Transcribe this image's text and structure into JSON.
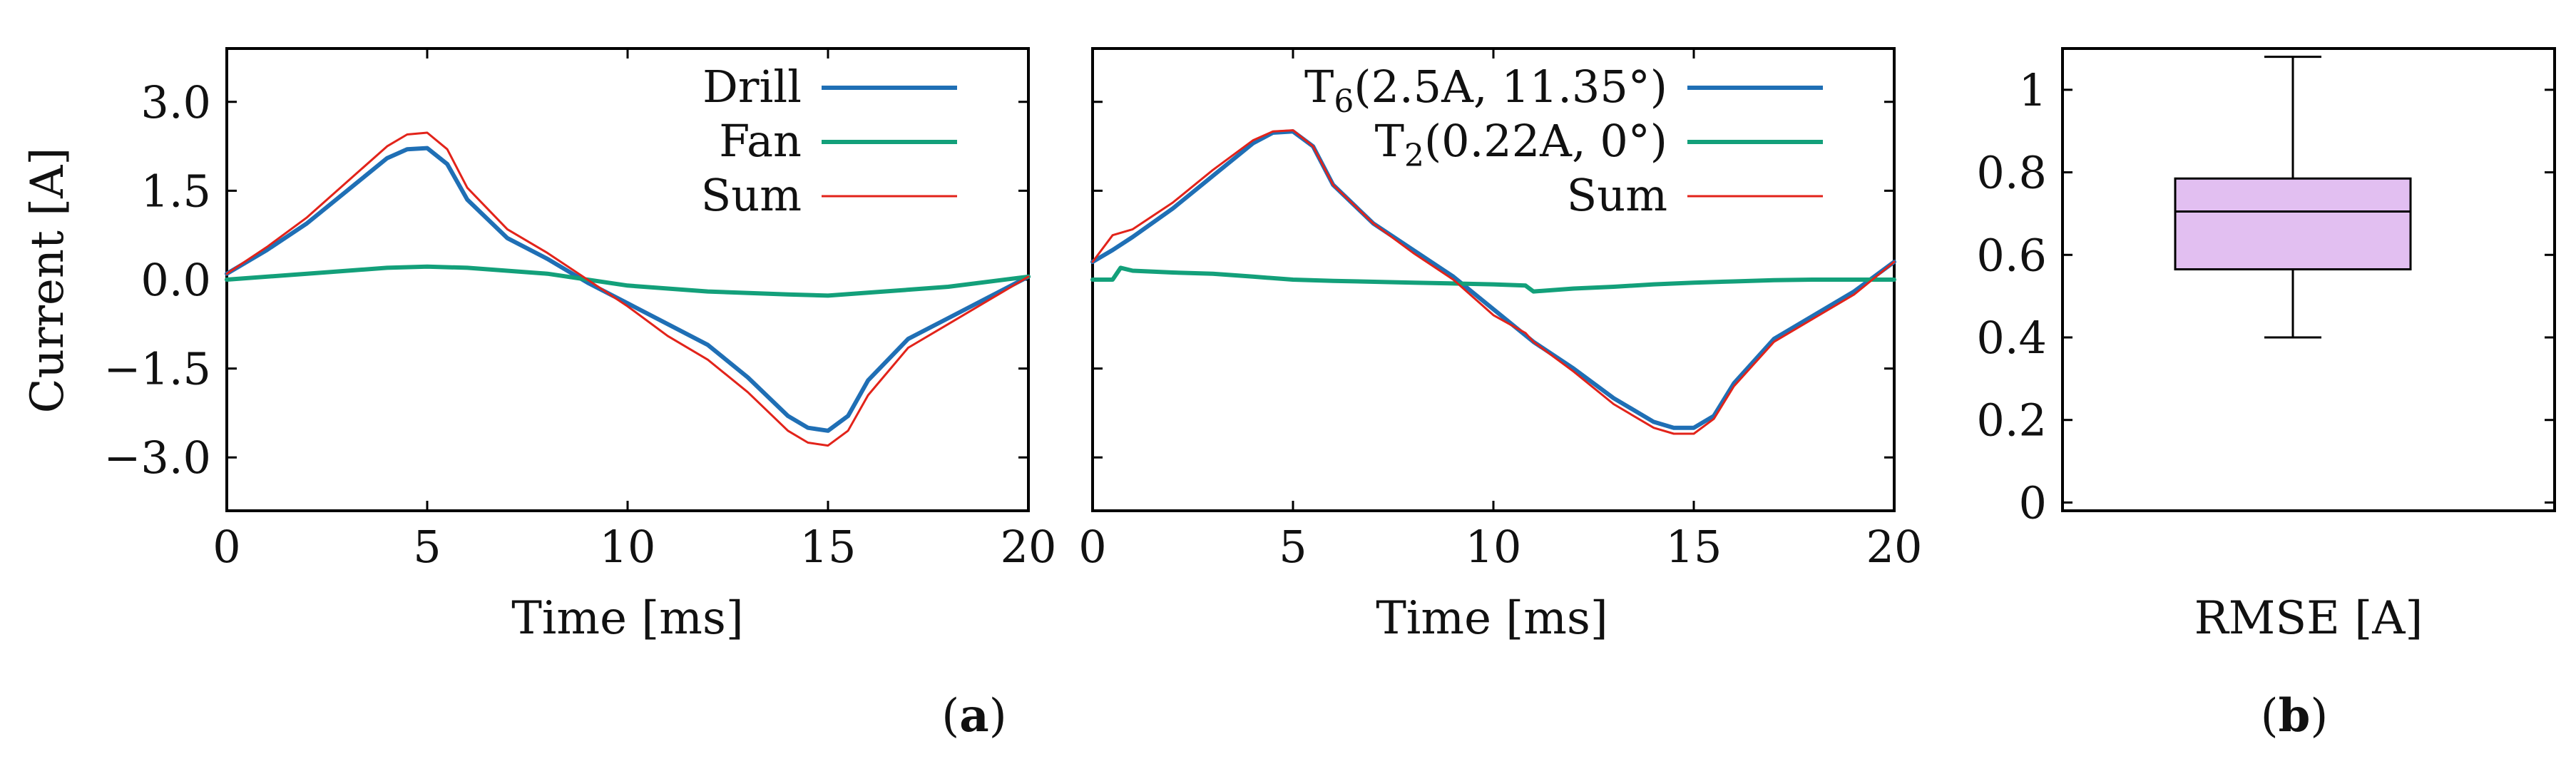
{
  "colors": {
    "drill": "#1f6fb5",
    "fan": "#13a07a",
    "sum": "#e2231a",
    "box_fill": "#e2bff1",
    "axis": "#000000"
  },
  "labels": {
    "panel_a": "a",
    "panel_b": "b"
  },
  "chart_data": [
    {
      "id": "a1",
      "type": "line",
      "xlabel": "Time [ms]",
      "ylabel": "Current [A]",
      "xlim": [
        0,
        20
      ],
      "ylim": [
        -3.9,
        3.9
      ],
      "xticks": [
        0,
        5,
        10,
        15,
        20
      ],
      "xtick_labels": [
        "0",
        "5",
        "10",
        "15",
        "20"
      ],
      "yticks": [
        3.0,
        1.5,
        0.0,
        -1.5,
        -3.0
      ],
      "ytick_labels": [
        "3.0",
        "1.5",
        "0.0",
        "−1.5",
        "−3.0"
      ],
      "legend_position": "top-right",
      "series": [
        {
          "name": "Drill",
          "color_key": "drill",
          "x": [
            0,
            1,
            2,
            3,
            4,
            4.5,
            5,
            5.5,
            6,
            7,
            8,
            9,
            10,
            11,
            12,
            13,
            14,
            14.5,
            15,
            15.5,
            16,
            17,
            18,
            19,
            20
          ],
          "y": [
            0.1,
            0.5,
            0.95,
            1.5,
            2.05,
            2.2,
            2.22,
            1.95,
            1.35,
            0.7,
            0.35,
            -0.05,
            -0.4,
            -0.75,
            -1.1,
            -1.65,
            -2.3,
            -2.5,
            -2.55,
            -2.3,
            -1.7,
            -1.0,
            -0.65,
            -0.3,
            0.05
          ]
        },
        {
          "name": "Fan",
          "color_key": "fan",
          "x": [
            0,
            2,
            4,
            5,
            6,
            8,
            10,
            12,
            14,
            15,
            16,
            18,
            20
          ],
          "y": [
            0.0,
            0.1,
            0.2,
            0.22,
            0.2,
            0.1,
            -0.1,
            -0.2,
            -0.25,
            -0.27,
            -0.22,
            -0.12,
            0.05
          ]
        },
        {
          "name": "Sum",
          "color_key": "sum",
          "x": [
            0,
            1,
            2,
            3,
            4,
            4.5,
            5,
            5.5,
            6,
            7,
            8,
            9,
            10,
            11,
            12,
            13,
            14,
            14.5,
            15,
            15.5,
            16,
            17,
            18,
            19,
            20
          ],
          "y": [
            0.1,
            0.55,
            1.05,
            1.65,
            2.25,
            2.45,
            2.48,
            2.2,
            1.55,
            0.85,
            0.45,
            0.0,
            -0.45,
            -0.95,
            -1.35,
            -1.9,
            -2.55,
            -2.75,
            -2.8,
            -2.55,
            -1.95,
            -1.15,
            -0.75,
            -0.35,
            0.05
          ]
        }
      ]
    },
    {
      "id": "a2",
      "type": "line",
      "xlabel": "Time [ms]",
      "ylabel": "",
      "xlim": [
        0,
        20
      ],
      "ylim": [
        -3.9,
        3.9
      ],
      "xticks": [
        0,
        5,
        10,
        15,
        20
      ],
      "xtick_labels": [
        "0",
        "5",
        "10",
        "15",
        "20"
      ],
      "yticks": [
        3.0,
        1.5,
        0.0,
        -1.5,
        -3.0
      ],
      "ytick_labels": [],
      "legend_position": "top-right",
      "series": [
        {
          "name": "T",
          "name_subscript": "6",
          "name_suffix": "(2.5A, 11.35°)",
          "color_key": "drill",
          "x": [
            0,
            0.5,
            1,
            2,
            3,
            4,
            4.5,
            5,
            5.5,
            6,
            7,
            8,
            9,
            10,
            11,
            12,
            13,
            14,
            14.5,
            15,
            15.5,
            16,
            17,
            18,
            19,
            20
          ],
          "y": [
            0.3,
            0.5,
            0.72,
            1.2,
            1.75,
            2.3,
            2.48,
            2.5,
            2.25,
            1.6,
            0.95,
            0.5,
            0.05,
            -0.5,
            -1.05,
            -1.5,
            -2.0,
            -2.4,
            -2.5,
            -2.5,
            -2.3,
            -1.75,
            -1.0,
            -0.6,
            -0.2,
            0.3
          ]
        },
        {
          "name": "T",
          "name_subscript": "2",
          "name_suffix": "(0.22A, 0°)",
          "color_key": "fan",
          "x": [
            0,
            0.5,
            0.7,
            1,
            2,
            3,
            4,
            5,
            6,
            8,
            10,
            10.8,
            11,
            12,
            13,
            14,
            15,
            16,
            17,
            18,
            19,
            20
          ],
          "y": [
            0.0,
            0.0,
            0.2,
            0.15,
            0.12,
            0.1,
            0.05,
            0.0,
            -0.02,
            -0.05,
            -0.08,
            -0.1,
            -0.2,
            -0.15,
            -0.12,
            -0.08,
            -0.05,
            -0.03,
            -0.01,
            0.0,
            0.0,
            0.0
          ]
        },
        {
          "name": "Sum",
          "color_key": "sum",
          "x": [
            0,
            0.5,
            1,
            2,
            3,
            4,
            4.5,
            5,
            5.5,
            6,
            7,
            8,
            9,
            10,
            10.8,
            11,
            12,
            13,
            14,
            14.5,
            15,
            15.5,
            16,
            17,
            18,
            19,
            20
          ],
          "y": [
            0.3,
            0.75,
            0.85,
            1.3,
            1.85,
            2.35,
            2.5,
            2.52,
            2.25,
            1.6,
            0.95,
            0.45,
            0.0,
            -0.6,
            -0.9,
            -1.05,
            -1.55,
            -2.1,
            -2.5,
            -2.6,
            -2.6,
            -2.35,
            -1.8,
            -1.05,
            -0.65,
            -0.25,
            0.3
          ]
        }
      ]
    },
    {
      "id": "b",
      "type": "box",
      "xlabel": "RMSE [A]",
      "ylabel": "",
      "ylim": [
        -0.02,
        1.1
      ],
      "yticks": [
        0,
        0.2,
        0.4,
        0.6,
        0.8,
        1.0
      ],
      "ytick_labels": [
        "0",
        "0.2",
        "0.4",
        "0.6",
        "0.8",
        "1"
      ],
      "box": {
        "min": 0.4,
        "q1": 0.565,
        "median": 0.705,
        "q3": 0.785,
        "max": 1.08
      }
    }
  ]
}
